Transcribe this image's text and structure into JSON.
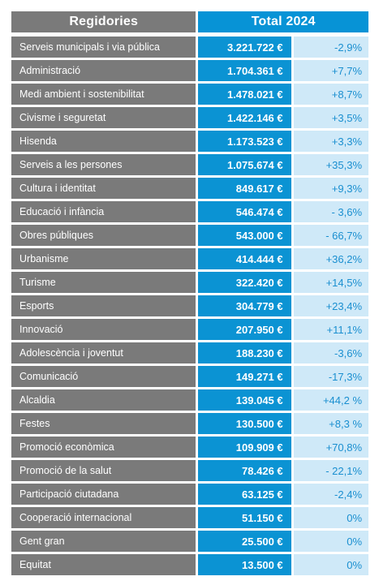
{
  "header": {
    "col1": "Regidories",
    "col2": "Total 2024"
  },
  "rows": [
    {
      "name": "Serveis municipals i via pública",
      "total": "3.221.722 €",
      "change": "-2,9%"
    },
    {
      "name": "Administració",
      "total": "1.704.361 €",
      "change": "+7,7%"
    },
    {
      "name": "Medi ambient i sostenibilitat",
      "total": "1.478.021 €",
      "change": "+8,7%"
    },
    {
      "name": "Civisme i seguretat",
      "total": "1.422.146 €",
      "change": "+3,5%"
    },
    {
      "name": "Hisenda",
      "total": "1.173.523 €",
      "change": "+3,3%"
    },
    {
      "name": "Serveis a les persones",
      "total": "1.075.674 €",
      "change": "+35,3%"
    },
    {
      "name": "Cultura i identitat",
      "total": "849.617 €",
      "change": "+9,3%"
    },
    {
      "name": "Educació i infància",
      "total": "546.474 €",
      "change": "- 3,6%"
    },
    {
      "name": "Obres públiques",
      "total": "543.000 €",
      "change": "- 66,7%"
    },
    {
      "name": "Urbanisme",
      "total": "414.444 €",
      "change": "+36,2%"
    },
    {
      "name": "Turisme",
      "total": "322.420 €",
      "change": "+14,5%"
    },
    {
      "name": "Esports",
      "total": "304.779 €",
      "change": "+23,4%"
    },
    {
      "name": "Innovació",
      "total": "207.950 €",
      "change": "+11,1%"
    },
    {
      "name": "Adolescència i joventut",
      "total": "188.230 €",
      "change": "-3,6%"
    },
    {
      "name": "Comunicació",
      "total": "149.271 €",
      "change": "-17,3%"
    },
    {
      "name": "Alcaldia",
      "total": "139.045 €",
      "change": "+44,2 %"
    },
    {
      "name": "Festes",
      "total": "130.500 €",
      "change": "+8,3 %"
    },
    {
      "name": "Promoció econòmica",
      "total": "109.909 €",
      "change": "+70,8%"
    },
    {
      "name": "Promoció de la salut",
      "total": "78.426 €",
      "change": "- 22,1%"
    },
    {
      "name": "Participació ciutadana",
      "total": "63.125 €",
      "change": "-2,4%"
    },
    {
      "name": "Cooperació internacional",
      "total": "51.150 €",
      "change": "0%"
    },
    {
      "name": "Gent gran",
      "total": "25.500 €",
      "change": "0%"
    },
    {
      "name": "Equitat",
      "total": "13.500 €",
      "change": "0%"
    }
  ],
  "colors": {
    "gray": "#7a7a7a",
    "blue": "#0b93d3",
    "light_blue": "#cfe9f8",
    "change_text": "#1a8fd0"
  }
}
